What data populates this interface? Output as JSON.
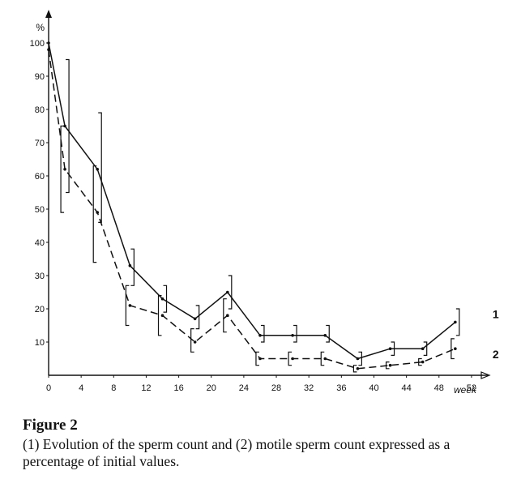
{
  "chart_data": {
    "type": "line",
    "y_unit": "%",
    "x_unit": "week",
    "xlim": [
      0,
      54
    ],
    "ylim": [
      0,
      110
    ],
    "x_ticks": [
      0,
      4,
      8,
      12,
      16,
      20,
      24,
      28,
      32,
      36,
      40,
      44,
      48,
      52
    ],
    "y_ticks": [
      10,
      20,
      30,
      40,
      50,
      60,
      70,
      80,
      90,
      100
    ],
    "grid": false,
    "series": [
      {
        "name": "1",
        "style": "solid",
        "points": [
          {
            "x": 0,
            "y": 100
          },
          {
            "x": 2,
            "y": 75,
            "lo": 55,
            "hi": 95
          },
          {
            "x": 6,
            "y": 62,
            "lo": 46,
            "hi": 79
          },
          {
            "x": 10,
            "y": 33,
            "lo": 27,
            "hi": 38
          },
          {
            "x": 14,
            "y": 23,
            "lo": 19,
            "hi": 27
          },
          {
            "x": 18,
            "y": 17,
            "lo": 14,
            "hi": 21
          },
          {
            "x": 22,
            "y": 25,
            "lo": 20,
            "hi": 30
          },
          {
            "x": 26,
            "y": 12,
            "lo": 10,
            "hi": 15
          },
          {
            "x": 30,
            "y": 12,
            "lo": 10,
            "hi": 15
          },
          {
            "x": 34,
            "y": 12,
            "lo": 10,
            "hi": 15
          },
          {
            "x": 38,
            "y": 5,
            "lo": 3,
            "hi": 7
          },
          {
            "x": 42,
            "y": 8,
            "lo": 6,
            "hi": 10
          },
          {
            "x": 46,
            "y": 8,
            "lo": 6,
            "hi": 10
          },
          {
            "x": 50,
            "y": 16,
            "lo": 12,
            "hi": 20
          }
        ]
      },
      {
        "name": "2",
        "style": "dashed",
        "points": [
          {
            "x": 0,
            "y": 98
          },
          {
            "x": 2,
            "y": 62,
            "lo": 49,
            "hi": 75
          },
          {
            "x": 6,
            "y": 49,
            "lo": 34,
            "hi": 63
          },
          {
            "x": 10,
            "y": 21,
            "lo": 15,
            "hi": 27
          },
          {
            "x": 14,
            "y": 18,
            "lo": 12,
            "hi": 24
          },
          {
            "x": 18,
            "y": 10,
            "lo": 7,
            "hi": 14
          },
          {
            "x": 22,
            "y": 18,
            "lo": 13,
            "hi": 23
          },
          {
            "x": 26,
            "y": 5,
            "lo": 3,
            "hi": 7
          },
          {
            "x": 30,
            "y": 5,
            "lo": 3,
            "hi": 7
          },
          {
            "x": 34,
            "y": 5,
            "lo": 3,
            "hi": 7
          },
          {
            "x": 38,
            "y": 2,
            "lo": 1,
            "hi": 3
          },
          {
            "x": 42,
            "y": 3,
            "lo": 2,
            "hi": 4
          },
          {
            "x": 46,
            "y": 4,
            "lo": 3,
            "hi": 5
          },
          {
            "x": 50,
            "y": 8,
            "lo": 5,
            "hi": 11
          }
        ]
      }
    ]
  },
  "caption": {
    "title": "Figure 2",
    "text": "(1) Evolution of the sperm count and (2) motile sperm count expressed as a percentage of initial values."
  }
}
